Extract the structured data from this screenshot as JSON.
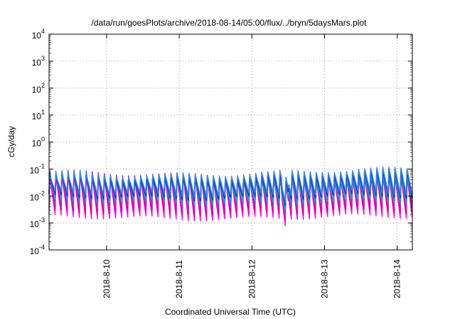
{
  "chart_data": {
    "type": "line",
    "title": "/data/run/goesPlots/archive/2018-08-14/05:00/flux/../bryn/5daysMars.plot",
    "xlabel": "Coordinated Universal Time (UTC)",
    "ylabel": "cGy/day",
    "yscale": "log",
    "ylim": [
      0.0001,
      10000
    ],
    "y_ticks": [
      {
        "value": 0.0001,
        "base": "10",
        "exp": "-4"
      },
      {
        "value": 0.001,
        "base": "10",
        "exp": "-3"
      },
      {
        "value": 0.01,
        "base": "10",
        "exp": "-2"
      },
      {
        "value": 0.1,
        "base": "10",
        "exp": "-1"
      },
      {
        "value": 1,
        "base": "10",
        "exp": "0"
      },
      {
        "value": 10,
        "base": "10",
        "exp": "1"
      },
      {
        "value": 100,
        "base": "10",
        "exp": "2"
      },
      {
        "value": 1000,
        "base": "10",
        "exp": "3"
      },
      {
        "value": 10000,
        "base": "10",
        "exp": "4"
      }
    ],
    "xlim": [
      "2018-08-09 05:00",
      "2018-08-14 05:00"
    ],
    "x_ticks": [
      "2018-8-10",
      "2018-8-11",
      "2018-8-12",
      "2018-8-13",
      "2018-8-14"
    ],
    "grid": true,
    "legend": "none",
    "pattern": {
      "period_hours": 2,
      "peak_range": [
        0.04,
        0.1
      ],
      "trough_range": [
        0.0015,
        0.005
      ],
      "note_dip": "2018-08-12 ~11:00 minimum ~0.002"
    },
    "series": [
      {
        "color": "#ff00ff",
        "peak": 0.045,
        "trough": 0.0016
      },
      {
        "color": "#e0008a",
        "peak": 0.05,
        "trough": 0.0025
      },
      {
        "color": "#b030c0",
        "peak": 0.055,
        "trough": 0.004
      },
      {
        "color": "#00b0c0",
        "peak": 0.06,
        "trough": 0.006
      },
      {
        "color": "#1f3fd0",
        "peak": 0.065,
        "trough": 0.009
      },
      {
        "color": "#3a8ad8",
        "peak": 0.07,
        "trough": 0.012
      }
    ]
  }
}
